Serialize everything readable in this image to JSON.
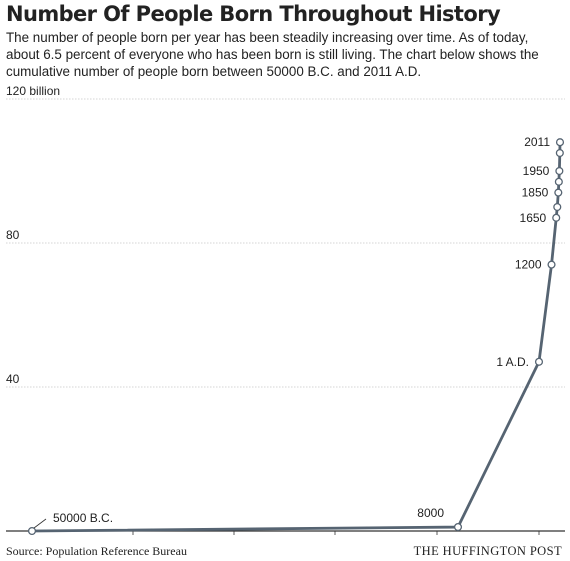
{
  "chart_data": {
    "type": "line",
    "title": "Number Of People Born Throughout History",
    "subtitle": "The number of people born per year has been steadily increasing over time. As of today, about 6.5 percent of everyone who has been born is still living. The chart below shows the cumulative number of people born between 50000 B.C. and 2011 A.D.",
    "y_unit_label": "120 billion",
    "y_ticks": [
      {
        "value": 0,
        "label": ""
      },
      {
        "value": 40,
        "label": "40"
      },
      {
        "value": 80,
        "label": "80"
      },
      {
        "value": 120,
        "label": "120 billion"
      }
    ],
    "ylim": [
      0,
      120
    ],
    "xlabel": "",
    "ylabel": "",
    "grid": true,
    "series": [
      {
        "points": [
          {
            "x": -50000,
            "y": 0,
            "label": "50000 B.C."
          },
          {
            "x": -8000,
            "y": 1.1,
            "label": "8000"
          },
          {
            "x": 1,
            "y": 47,
            "label": "1 A.D."
          },
          {
            "x": 1200,
            "y": 74,
            "label": "1200"
          },
          {
            "x": 1650,
            "y": 87,
            "label": "1650"
          },
          {
            "x": 1750,
            "y": 90,
            "label": ""
          },
          {
            "x": 1850,
            "y": 94,
            "label": "1850"
          },
          {
            "x": 1900,
            "y": 97,
            "label": ""
          },
          {
            "x": 1950,
            "y": 100,
            "label": "1950"
          },
          {
            "x": 1995,
            "y": 105,
            "label": ""
          },
          {
            "x": 2011,
            "y": 108,
            "label": "2011"
          }
        ]
      }
    ],
    "colors": {
      "line": "#566472",
      "grid": "#c8c8c8",
      "marker_fill": "#ffffff"
    }
  },
  "footer": {
    "source": "Source: Population Reference Bureau",
    "brand": "THE HUFFINGTON POST"
  }
}
